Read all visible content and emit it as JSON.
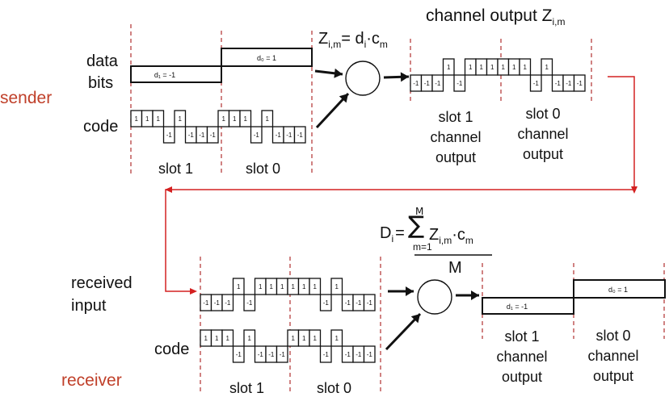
{
  "labels": {
    "channel_output_title": "channel output Z",
    "channel_output_sub": "i,m",
    "sender": "sender",
    "receiver": "receiver",
    "data": "data",
    "bits": "bits",
    "code_top": "code",
    "code_bottom": "code",
    "received": "received",
    "input": "input",
    "slot1_top": "slot 1",
    "slot0_top": "slot 0",
    "slot1_bottom": "slot 1",
    "slot0_bottom": "slot 0",
    "slot1_ch_top": [
      "slot 1",
      "channel",
      "output"
    ],
    "slot0_ch_top": [
      "slot 0",
      "channel",
      "output"
    ],
    "slot1_ch_bot": [
      "slot 1",
      "channel",
      "output"
    ],
    "slot0_ch_bot": [
      "slot 0",
      "channel",
      "output"
    ],
    "d1_top": "d₁ = -1",
    "d0_top": "d₀ = 1",
    "d1_bot": "d₁ = -1",
    "d0_bot": "d₀ = 1"
  },
  "formula_enc": {
    "z": "Z",
    "z_sub": "i,m",
    "eq": "= d",
    "d_sub": "i",
    "dot": "·",
    "c": "c",
    "c_sub": "m"
  },
  "formula_dec": {
    "d": "D",
    "d_sub": "i",
    "eq": "=",
    "sigma": "∑",
    "top": "M",
    "bottom": "m=1",
    "z": "Z",
    "z_sub": "i,m",
    "dot": "·",
    "c": "c",
    "c_sub": "m",
    "den": "M"
  },
  "code_sequence": [
    1,
    1,
    1,
    -1,
    1,
    -1,
    -1,
    -1
  ],
  "colors": {
    "accent_red": "#d42020",
    "label_red": "#c0402a",
    "dashed": "#b03030"
  }
}
